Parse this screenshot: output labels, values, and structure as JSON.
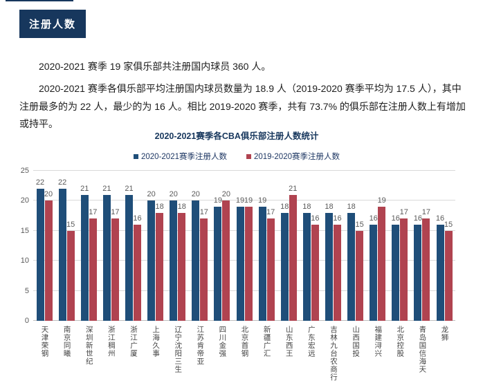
{
  "page": {
    "badge": "注册人数",
    "paragraph1": "2020-2021 赛季 19 家俱乐部共注册国内球员 360 人。",
    "paragraph2": "2020-2021 赛季各俱乐部平均注册国内球员数量为 18.9 人（2019-2020 赛季平均为 17.5 人），其中注册最多的为 22 人，最少的为 16 人。相比 2019-2020 赛季，共有 73.7% 的俱乐部在注册人数上有增加或持平。"
  },
  "chart_data": {
    "type": "bar",
    "title": "2020-2021赛季各CBA俱乐部注册人数统计",
    "categories": [
      "天津荣钢",
      "南京同曦",
      "深圳新世纪",
      "浙江稠州",
      "浙江广厦",
      "上海久事",
      "辽宁沈阳三生",
      "江苏肯帝亚",
      "四川金强",
      "北京首钢",
      "新疆广汇",
      "山东西王",
      "广东宏远",
      "吉林九台农商行",
      "山西国投",
      "福建浔兴",
      "北京控股",
      "青岛国信海天",
      "龙狮"
    ],
    "series": [
      {
        "name": "2020-2021赛季注册人数",
        "color": "#1F4E79",
        "values": [
          22,
          22,
          21,
          21,
          21,
          20,
          20,
          20,
          19,
          19,
          19,
          18,
          18,
          18,
          18,
          16,
          16,
          16,
          16
        ]
      },
      {
        "name": "2019-2020赛季注册人数",
        "color": "#B04350",
        "values": [
          20,
          15,
          17,
          17,
          16,
          18,
          18,
          17,
          20,
          19,
          17,
          21,
          16,
          16,
          15,
          19,
          17,
          17,
          15
        ]
      }
    ],
    "xlabel": "",
    "ylabel": "",
    "ylim": [
      0,
      25
    ],
    "yticks": [
      0,
      5,
      10,
      15,
      20,
      25
    ],
    "grid": true,
    "legend_position": "top"
  },
  "colors": {
    "accent_navy": "#17375D",
    "bar_blue": "#1F4E79",
    "bar_red": "#B04350",
    "label_gray": "#595959"
  }
}
